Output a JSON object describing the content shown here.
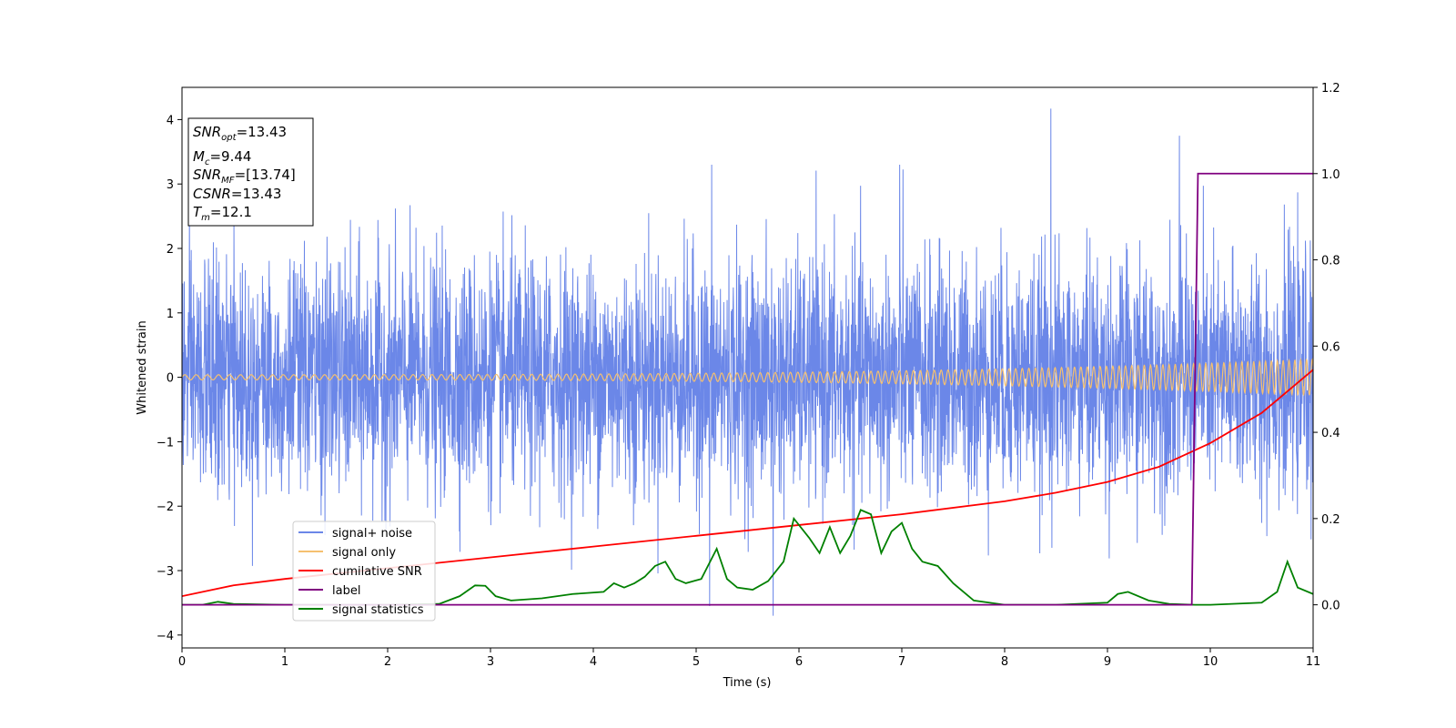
{
  "chart_data": {
    "type": "line",
    "xlabel": "Time (s)",
    "ylabel": "Whitened strain",
    "xlim": [
      0,
      11
    ],
    "ylim": [
      -4.2,
      4.5
    ],
    "y2lim": [
      -0.1,
      1.2
    ],
    "x_ticks": [
      0,
      1,
      2,
      3,
      4,
      5,
      6,
      7,
      8,
      9,
      10,
      11
    ],
    "y_ticks": [
      -4,
      -3,
      -2,
      -1,
      0,
      1,
      2,
      3,
      4
    ],
    "y2_ticks": [
      0.0,
      0.2,
      0.4,
      0.6,
      0.8,
      1.0,
      1.2
    ],
    "grid": false,
    "legend_position": "lower-left",
    "series": [
      {
        "name": "signal+ noise",
        "axis": "left",
        "color": "#6b87e8",
        "style": "dense-noise",
        "approx_std": 0.9,
        "approx_range": [
          -3.7,
          4.2
        ],
        "peaks": [
          {
            "x": 8.45,
            "y": 4.17
          },
          {
            "x": 9.7,
            "y": 3.75
          },
          {
            "x": 6.98,
            "y": 3.3
          },
          {
            "x": 5.15,
            "y": 3.3
          },
          {
            "x": 5.75,
            "y": -3.7
          },
          {
            "x": 5.13,
            "y": -3.55
          }
        ]
      },
      {
        "name": "signal only",
        "axis": "left",
        "color": "#f5c070",
        "style": "chirp",
        "amplitude_start": 0.04,
        "amplitude_end": 0.28
      },
      {
        "name": "cumilative SNR",
        "axis": "right",
        "color": "#ff0000",
        "x": [
          0,
          0.5,
          1,
          2,
          3,
          4,
          5,
          6,
          7,
          8,
          8.5,
          9,
          9.5,
          10,
          10.5,
          11
        ],
        "y": [
          0.02,
          0.045,
          0.06,
          0.085,
          0.11,
          0.135,
          0.16,
          0.185,
          0.21,
          0.24,
          0.26,
          0.285,
          0.32,
          0.375,
          0.445,
          0.545
        ]
      },
      {
        "name": "label",
        "axis": "right",
        "color": "#800080",
        "x": [
          0,
          9.82,
          9.88,
          11
        ],
        "y": [
          0,
          0,
          1,
          1
        ]
      },
      {
        "name": "signal statistics",
        "axis": "right",
        "color": "#008000",
        "x": [
          0,
          0.2,
          0.35,
          0.5,
          1,
          1.5,
          2,
          2.5,
          2.7,
          2.85,
          2.95,
          3.05,
          3.2,
          3.5,
          3.8,
          4.1,
          4.2,
          4.3,
          4.4,
          4.5,
          4.6,
          4.7,
          4.8,
          4.9,
          5.05,
          5.2,
          5.3,
          5.4,
          5.55,
          5.7,
          5.85,
          5.95,
          6.1,
          6.2,
          6.3,
          6.4,
          6.5,
          6.6,
          6.7,
          6.8,
          6.9,
          7.0,
          7.1,
          7.2,
          7.35,
          7.5,
          7.7,
          8.0,
          8.5,
          9.0,
          9.1,
          9.2,
          9.4,
          9.6,
          9.85,
          10.0,
          10.5,
          10.65,
          10.75,
          10.85,
          11.0
        ],
        "y": [
          0.0,
          0.0,
          0.007,
          0.002,
          0.0,
          0.0,
          0.0,
          0.002,
          0.02,
          0.045,
          0.044,
          0.02,
          0.01,
          0.015,
          0.025,
          0.03,
          0.05,
          0.04,
          0.05,
          0.065,
          0.09,
          0.1,
          0.06,
          0.05,
          0.06,
          0.13,
          0.06,
          0.04,
          0.035,
          0.055,
          0.1,
          0.2,
          0.155,
          0.12,
          0.18,
          0.12,
          0.16,
          0.22,
          0.21,
          0.12,
          0.17,
          0.19,
          0.13,
          0.1,
          0.09,
          0.05,
          0.01,
          0.0,
          0.0,
          0.005,
          0.025,
          0.03,
          0.01,
          0.002,
          0.0,
          0.0,
          0.005,
          0.03,
          0.1,
          0.04,
          0.025
        ]
      }
    ]
  },
  "info_box": {
    "snr_opt_base": "SNR",
    "snr_opt_sub": "opt",
    "snr_opt_value": "=13.43",
    "mc_base": "M",
    "mc_sub": "c",
    "mc_value": "=9.44",
    "snr_mf_base": "SNR",
    "snr_mf_sub": "MF",
    "snr_mf_value": "=[13.74]",
    "csnr_base": "CSNR",
    "csnr_value": "=13.43",
    "tm_base": "T",
    "tm_sub": "m",
    "tm_value": "=12.1"
  }
}
